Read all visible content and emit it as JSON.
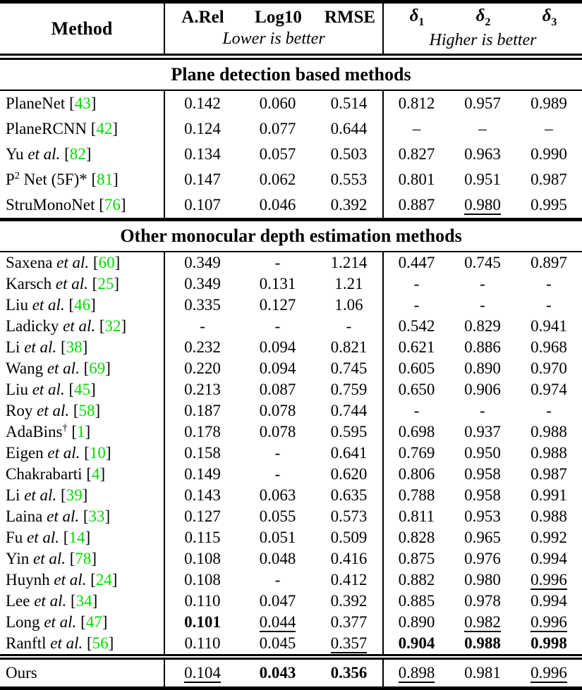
{
  "colors": {
    "citation_green": "#00DC00",
    "text": "#000000",
    "background": "#ffffff"
  },
  "header": {
    "method_label": "Method",
    "lower_group": {
      "cols": [
        "A.Rel",
        "Log10",
        "RMSE"
      ],
      "note": "Lower is better"
    },
    "higher_group": {
      "delta_cols": [
        {
          "base": "δ",
          "sub": "1"
        },
        {
          "base": "δ",
          "sub": "2"
        },
        {
          "base": "δ",
          "sub": "3"
        }
      ],
      "note": "Higher is better"
    }
  },
  "sections": [
    {
      "title": "Plane detection based methods",
      "rows": [
        {
          "method": [
            [
              "PlaneNet",
              "n"
            ]
          ],
          "cite": "43",
          "vals": [
            "0.142",
            "0.060",
            "0.514",
            "0.812",
            "0.957",
            "0.989"
          ],
          "styles": [
            "p",
            "p",
            "p",
            "p",
            "p",
            "p"
          ]
        },
        {
          "method": [
            [
              "PlaneRCNN",
              "n"
            ]
          ],
          "cite": "42",
          "vals": [
            "0.124",
            "0.077",
            "0.644",
            "–",
            "–",
            "–"
          ],
          "styles": [
            "p",
            "p",
            "p",
            "p",
            "p",
            "p"
          ]
        },
        {
          "method": [
            [
              "Yu ",
              "n"
            ],
            [
              "et al.",
              "i"
            ]
          ],
          "cite": "82",
          "vals": [
            "0.134",
            "0.057",
            "0.503",
            "0.827",
            "0.963",
            "0.990"
          ],
          "styles": [
            "p",
            "p",
            "p",
            "p",
            "p",
            "p"
          ]
        },
        {
          "method": [
            [
              "P",
              "n"
            ],
            [
              "2",
              "s"
            ],
            [
              " Net (5F)*",
              "n"
            ]
          ],
          "cite": "81",
          "vals": [
            "0.147",
            "0.062",
            "0.553",
            "0.801",
            "0.951",
            "0.987"
          ],
          "styles": [
            "p",
            "p",
            "p",
            "p",
            "p",
            "p"
          ]
        },
        {
          "method": [
            [
              "StruMonoNet",
              "n"
            ]
          ],
          "cite": "76",
          "vals": [
            "0.107",
            "0.046",
            "0.392",
            "0.887",
            "0.980",
            "0.995"
          ],
          "styles": [
            "p",
            "p",
            "p",
            "p",
            "u",
            "p"
          ]
        }
      ]
    },
    {
      "title": "Other monocular depth estimation methods",
      "rows": [
        {
          "method": [
            [
              "Saxena ",
              "n"
            ],
            [
              "et al.",
              "i"
            ]
          ],
          "cite": "60",
          "vals": [
            "0.349",
            "-",
            "1.214",
            "0.447",
            "0.745",
            "0.897"
          ],
          "styles": [
            "p",
            "p",
            "p",
            "p",
            "p",
            "p"
          ]
        },
        {
          "method": [
            [
              "Karsch ",
              "n"
            ],
            [
              "et al.",
              "i"
            ]
          ],
          "cite": "25",
          "vals": [
            "0.349",
            "0.131",
            "1.21",
            "-",
            "-",
            "-"
          ],
          "styles": [
            "p",
            "p",
            "p",
            "p",
            "p",
            "p"
          ]
        },
        {
          "method": [
            [
              "Liu ",
              "n"
            ],
            [
              "et al.",
              "i"
            ]
          ],
          "cite": "46",
          "vals": [
            "0.335",
            "0.127",
            "1.06",
            "-",
            "-",
            "-"
          ],
          "styles": [
            "p",
            "p",
            "p",
            "p",
            "p",
            "p"
          ]
        },
        {
          "method": [
            [
              "Ladicky ",
              "n"
            ],
            [
              "et al.",
              "i"
            ]
          ],
          "cite": "32",
          "vals": [
            "-",
            "-",
            "-",
            "0.542",
            "0.829",
            "0.941"
          ],
          "styles": [
            "p",
            "p",
            "p",
            "p",
            "p",
            "p"
          ]
        },
        {
          "method": [
            [
              "Li ",
              "n"
            ],
            [
              "et al.",
              "i"
            ]
          ],
          "cite": "38",
          "vals": [
            "0.232",
            "0.094",
            "0.821",
            "0.621",
            "0.886",
            "0.968"
          ],
          "styles": [
            "p",
            "p",
            "p",
            "p",
            "p",
            "p"
          ]
        },
        {
          "method": [
            [
              "Wang ",
              "n"
            ],
            [
              "et al.",
              "i"
            ]
          ],
          "cite": "69",
          "vals": [
            "0.220",
            "0.094",
            "0.745",
            "0.605",
            "0.890",
            "0.970"
          ],
          "styles": [
            "p",
            "p",
            "p",
            "p",
            "p",
            "p"
          ]
        },
        {
          "method": [
            [
              "Liu ",
              "n"
            ],
            [
              "et al.",
              "i"
            ]
          ],
          "cite": "45",
          "vals": [
            "0.213",
            "0.087",
            "0.759",
            "0.650",
            "0.906",
            "0.974"
          ],
          "styles": [
            "p",
            "p",
            "p",
            "p",
            "p",
            "p"
          ]
        },
        {
          "method": [
            [
              "Roy ",
              "n"
            ],
            [
              "et al.",
              "i"
            ]
          ],
          "cite": "58",
          "vals": [
            "0.187",
            "0.078",
            "0.744",
            "-",
            "-",
            "-"
          ],
          "styles": [
            "p",
            "p",
            "p",
            "p",
            "p",
            "p"
          ]
        },
        {
          "method": [
            [
              "AdaBins",
              "n"
            ],
            [
              "†",
              "s"
            ]
          ],
          "cite": "1",
          "vals": [
            "0.178",
            "0.078",
            "0.595",
            "0.698",
            "0.937",
            "0.988"
          ],
          "styles": [
            "p",
            "p",
            "p",
            "p",
            "p",
            "p"
          ]
        },
        {
          "method": [
            [
              "Eigen ",
              "n"
            ],
            [
              "et al.",
              "i"
            ]
          ],
          "cite": "10",
          "vals": [
            "0.158",
            "-",
            "0.641",
            "0.769",
            "0.950",
            "0.988"
          ],
          "styles": [
            "p",
            "p",
            "p",
            "p",
            "p",
            "p"
          ]
        },
        {
          "method": [
            [
              "Chakrabarti",
              "n"
            ]
          ],
          "cite": "4",
          "vals": [
            "0.149",
            "-",
            "0.620",
            "0.806",
            "0.958",
            "0.987"
          ],
          "styles": [
            "p",
            "p",
            "p",
            "p",
            "p",
            "p"
          ]
        },
        {
          "method": [
            [
              "Li ",
              "n"
            ],
            [
              "et al.",
              "i"
            ]
          ],
          "cite": "39",
          "vals": [
            "0.143",
            "0.063",
            "0.635",
            "0.788",
            "0.958",
            "0.991"
          ],
          "styles": [
            "p",
            "p",
            "p",
            "p",
            "p",
            "p"
          ]
        },
        {
          "method": [
            [
              "Laina ",
              "n"
            ],
            [
              "et al.",
              "i"
            ]
          ],
          "cite": "33",
          "vals": [
            "0.127",
            "0.055",
            "0.573",
            "0.811",
            "0.953",
            "0.988"
          ],
          "styles": [
            "p",
            "p",
            "p",
            "p",
            "p",
            "p"
          ]
        },
        {
          "method": [
            [
              "Fu ",
              "n"
            ],
            [
              "et al.",
              "i"
            ]
          ],
          "cite": "14",
          "vals": [
            "0.115",
            "0.051",
            "0.509",
            "0.828",
            "0.965",
            "0.992"
          ],
          "styles": [
            "p",
            "p",
            "p",
            "p",
            "p",
            "p"
          ]
        },
        {
          "method": [
            [
              "Yin ",
              "n"
            ],
            [
              "et al.",
              "i"
            ]
          ],
          "cite": "78",
          "vals": [
            "0.108",
            "0.048",
            "0.416",
            "0.875",
            "0.976",
            "0.994"
          ],
          "styles": [
            "p",
            "p",
            "p",
            "p",
            "p",
            "p"
          ]
        },
        {
          "method": [
            [
              "Huynh ",
              "n"
            ],
            [
              "et al.",
              "i"
            ]
          ],
          "cite": "24",
          "vals": [
            "0.108",
            "-",
            "0.412",
            "0.882",
            "0.980",
            "0.996"
          ],
          "styles": [
            "p",
            "p",
            "p",
            "p",
            "p",
            "u"
          ]
        },
        {
          "method": [
            [
              "Lee ",
              "n"
            ],
            [
              "et al.",
              "i"
            ]
          ],
          "cite": "34",
          "vals": [
            "0.110",
            "0.047",
            "0.392",
            "0.885",
            "0.978",
            "0.994"
          ],
          "styles": [
            "p",
            "p",
            "p",
            "p",
            "p",
            "p"
          ]
        },
        {
          "method": [
            [
              "Long ",
              "n"
            ],
            [
              "et al.",
              "i"
            ]
          ],
          "cite": "47",
          "vals": [
            "0.101",
            "0.044",
            "0.377",
            "0.890",
            "0.982",
            "0.996"
          ],
          "styles": [
            "b",
            "u",
            "p",
            "p",
            "u",
            "u"
          ]
        },
        {
          "method": [
            [
              "Ranftl ",
              "n"
            ],
            [
              "et al.",
              "i"
            ]
          ],
          "cite": "56",
          "vals": [
            "0.110",
            "0.045",
            "0.357",
            "0.904",
            "0.988",
            "0.998"
          ],
          "styles": [
            "p",
            "p",
            "u",
            "b",
            "b",
            "b"
          ]
        }
      ]
    }
  ],
  "footer_row": {
    "method": [
      [
        "Ours",
        "n"
      ]
    ],
    "cite": null,
    "vals": [
      "0.104",
      "0.043",
      "0.356",
      "0.898",
      "0.981",
      "0.996"
    ],
    "styles": [
      "u",
      "b",
      "b",
      "u",
      "p",
      "u"
    ]
  }
}
